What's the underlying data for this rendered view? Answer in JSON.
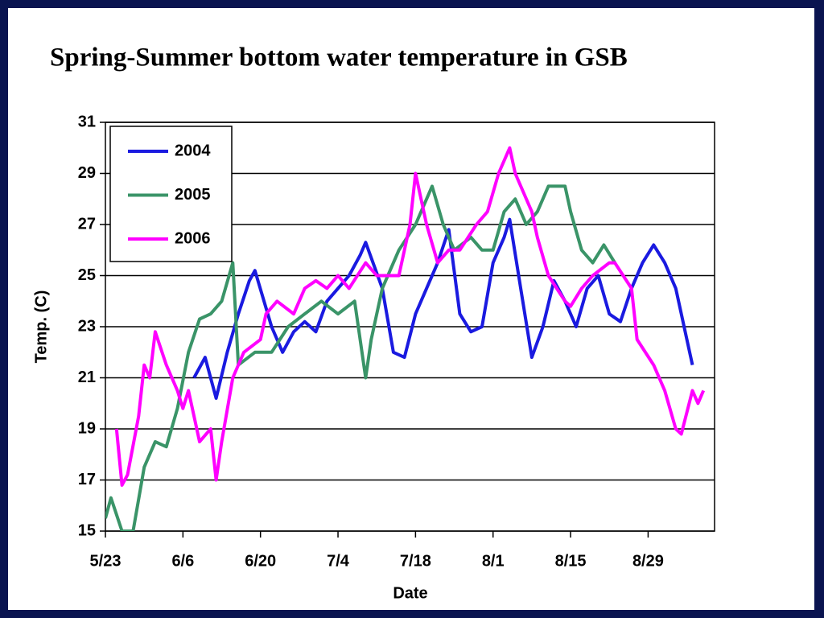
{
  "chart_data": {
    "type": "line",
    "title": "Spring-Summer bottom water temperature in GSB",
    "xlabel": "Date",
    "ylabel": "Temp. (C)",
    "xlim": [
      "5/23",
      "9/10"
    ],
    "xticks": [
      "5/23",
      "6/6",
      "6/20",
      "7/4",
      "7/18",
      "8/1",
      "8/15",
      "8/29"
    ],
    "ylim": [
      15,
      31
    ],
    "yticks": [
      15,
      17,
      19,
      21,
      23,
      25,
      27,
      29,
      31
    ],
    "grid": true,
    "legend": "upper left",
    "series": [
      {
        "name": "2004",
        "color": "#1a1ae0",
        "x": [
          "6/8",
          "6/10",
          "6/12",
          "6/14",
          "6/16",
          "6/18",
          "6/19",
          "6/22",
          "6/24",
          "6/26",
          "6/28",
          "6/30",
          "7/2",
          "7/4",
          "7/6",
          "7/8",
          "7/9",
          "7/12",
          "7/14",
          "7/16",
          "7/18",
          "7/20",
          "7/22",
          "7/24",
          "7/26",
          "7/28",
          "7/30",
          "8/1",
          "8/3",
          "8/4",
          "8/6",
          "8/8",
          "8/10",
          "8/12",
          "8/14",
          "8/16",
          "8/18",
          "8/20",
          "8/22",
          "8/24",
          "8/26",
          "8/28",
          "8/30",
          "9/1",
          "9/3",
          "9/5",
          "9/6"
        ],
        "values": [
          21.0,
          21.8,
          20.2,
          22.0,
          23.5,
          24.8,
          25.2,
          23.0,
          22.0,
          22.8,
          23.2,
          22.8,
          24.0,
          24.5,
          25.0,
          25.8,
          26.3,
          24.5,
          22.0,
          21.8,
          23.5,
          24.5,
          25.5,
          26.8,
          23.5,
          22.8,
          23.0,
          25.5,
          26.5,
          27.2,
          24.5,
          21.8,
          23.0,
          24.8,
          24.0,
          23.0,
          24.5,
          25.0,
          23.5,
          23.2,
          24.5,
          25.5,
          26.2,
          25.5,
          24.5,
          22.5,
          21.5
        ]
      },
      {
        "name": "2005",
        "color": "#3a9468",
        "x": [
          "5/23",
          "5/24",
          "5/26",
          "5/28",
          "5/30",
          "6/1",
          "6/3",
          "6/5",
          "6/7",
          "6/9",
          "6/11",
          "6/13",
          "6/15",
          "6/16",
          "6/19",
          "6/22",
          "6/25",
          "6/28",
          "7/1",
          "7/4",
          "7/7",
          "7/9",
          "7/10",
          "7/12",
          "7/15",
          "7/18",
          "7/21",
          "7/23",
          "7/25",
          "7/28",
          "7/30",
          "8/1",
          "8/3",
          "8/5",
          "8/7",
          "8/9",
          "8/11",
          "8/14",
          "8/15",
          "8/17",
          "8/19",
          "8/21",
          "8/23"
        ],
        "values": [
          15.5,
          16.3,
          15.0,
          15.0,
          17.5,
          18.5,
          18.3,
          19.8,
          22.0,
          23.3,
          23.5,
          24.0,
          25.5,
          21.5,
          22.0,
          22.0,
          23.0,
          23.5,
          24.0,
          23.5,
          24.0,
          21.0,
          22.5,
          24.5,
          26.0,
          27.0,
          28.5,
          27.0,
          26.0,
          26.5,
          26.0,
          26.0,
          27.5,
          28.0,
          27.0,
          27.5,
          28.5,
          28.5,
          27.5,
          26.0,
          25.5,
          26.2,
          25.5
        ]
      },
      {
        "name": "2006",
        "color": "#ff00ff",
        "x": [
          "5/25",
          "5/26",
          "5/27",
          "5/29",
          "5/30",
          "5/31",
          "6/1",
          "6/3",
          "6/5",
          "6/6",
          "6/7",
          "6/9",
          "6/11",
          "6/12",
          "6/13",
          "6/15",
          "6/17",
          "6/20",
          "6/21",
          "6/23",
          "6/26",
          "6/28",
          "6/30",
          "7/2",
          "7/4",
          "7/6",
          "7/9",
          "7/11",
          "7/13",
          "7/15",
          "7/17",
          "7/18",
          "7/20",
          "7/22",
          "7/24",
          "7/26",
          "7/29",
          "7/31",
          "8/2",
          "8/4",
          "8/5",
          "8/8",
          "8/9",
          "8/11",
          "8/14",
          "8/15",
          "8/17",
          "8/19",
          "8/22",
          "8/23",
          "8/26",
          "8/27",
          "8/30",
          "9/1",
          "9/3",
          "9/4",
          "9/6",
          "9/7",
          "9/8"
        ],
        "values": [
          19.0,
          16.8,
          17.2,
          19.5,
          21.5,
          21.0,
          22.8,
          21.5,
          20.5,
          19.8,
          20.5,
          18.5,
          19.0,
          17.0,
          18.5,
          21.0,
          22.0,
          22.5,
          23.5,
          24.0,
          23.5,
          24.5,
          24.8,
          24.5,
          25.0,
          24.5,
          25.5,
          25.0,
          25.0,
          25.0,
          27.0,
          29.0,
          27.0,
          25.5,
          26.0,
          26.0,
          27.0,
          27.5,
          29.0,
          30.0,
          29.0,
          27.5,
          26.5,
          25.0,
          24.0,
          23.8,
          24.5,
          25.0,
          25.5,
          25.5,
          24.5,
          22.5,
          21.5,
          20.5,
          19.0,
          18.8,
          20.5,
          20.0,
          20.5
        ]
      }
    ]
  }
}
